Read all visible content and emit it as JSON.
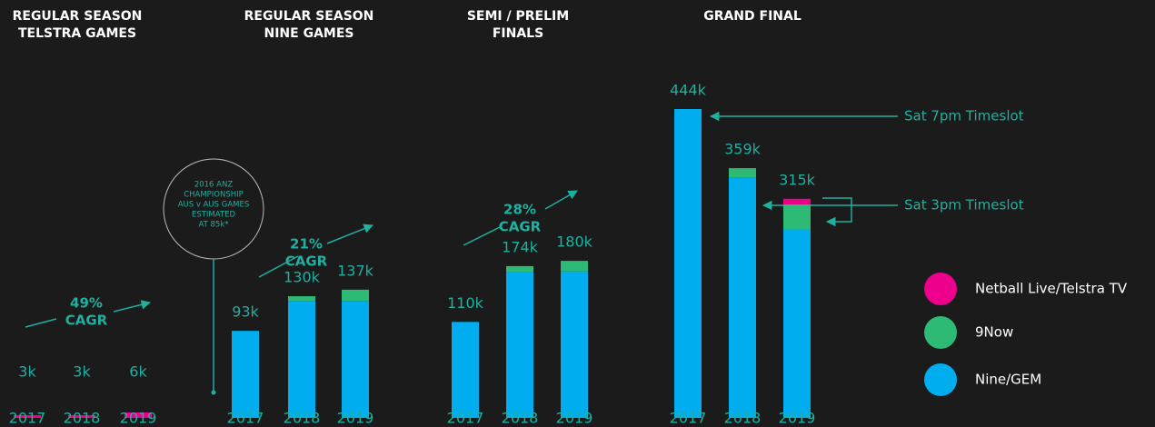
{
  "chart_data": [
    {
      "type": "bar",
      "title": [
        "REGULAR SEASON",
        "TELSTRA GAMES"
      ],
      "categories": [
        "2017",
        "2018",
        "2019"
      ],
      "series": [
        {
          "values": [
            0,
            0,
            0
          ]
        },
        {
          "values": [
            0,
            0,
            0
          ]
        },
        {
          "values": [
            3,
            3,
            6
          ]
        }
      ],
      "totals": [
        3,
        3,
        6
      ],
      "total_labels": [
        "3k",
        "3k",
        "6k"
      ],
      "ylim": [
        0,
        340
      ]
    },
    {
      "type": "bar",
      "title": [
        "REGULAR SEASON",
        "NINE GAMES"
      ],
      "categories": [
        "2017",
        "2018",
        "2019"
      ],
      "series": [
        {
          "values": [
            93,
            125,
            125
          ]
        },
        {
          "values": [
            0,
            5,
            12
          ]
        },
        {
          "values": [
            0,
            0,
            0
          ]
        }
      ],
      "totals": [
        93,
        130,
        137
      ],
      "total_labels": [
        "93k",
        "130k",
        "137k"
      ],
      "ylim": [
        0,
        330
      ]
    },
    {
      "type": "bar",
      "title": [
        "SEMI / PRELIM",
        "FINALS"
      ],
      "categories": [
        "2017",
        "2018",
        "2019"
      ],
      "series": [
        {
          "values": [
            110,
            167,
            168
          ]
        },
        {
          "values": [
            0,
            7,
            12
          ]
        },
        {
          "values": [
            0,
            0,
            0
          ]
        }
      ],
      "totals": [
        110,
        174,
        180
      ],
      "total_labels": [
        "110k",
        "174k",
        "180k"
      ],
      "ylim": [
        0,
        354
      ]
    },
    {
      "type": "bar",
      "title": [
        "GRAND FINAL"
      ],
      "categories": [
        "2017",
        "2018",
        "2019"
      ],
      "series": [
        {
          "values": [
            444,
            345,
            271
          ]
        },
        {
          "values": [
            0,
            14,
            36
          ]
        },
        {
          "values": [
            0,
            0,
            8
          ]
        }
      ],
      "totals": [
        444,
        359,
        315
      ],
      "total_labels": [
        "444k",
        "359k",
        "315k"
      ],
      "ylim": [
        0,
        444
      ]
    }
  ],
  "legend": [
    {
      "name": "Nine/GEM",
      "color": "#00aeef"
    },
    {
      "name": "9Now",
      "color": "#2dba74"
    },
    {
      "name": "Netball Live/Telstra TV",
      "color": "#ec008c"
    }
  ],
  "annotations": {
    "cagr": [
      {
        "pct": "49%",
        "label": "CAGR"
      },
      {
        "pct": "21%",
        "label": "CAGR"
      },
      {
        "pct": "28%",
        "label": "CAGR"
      }
    ],
    "note": [
      "2016 ANZ",
      "CHAMPIONSHIP",
      "AUS v AUS GAMES",
      "ESTIMATED",
      "AT 85k*"
    ],
    "timeslots": [
      "Sat 7pm Timeslot",
      "Sat 3pm Timeslot"
    ]
  }
}
